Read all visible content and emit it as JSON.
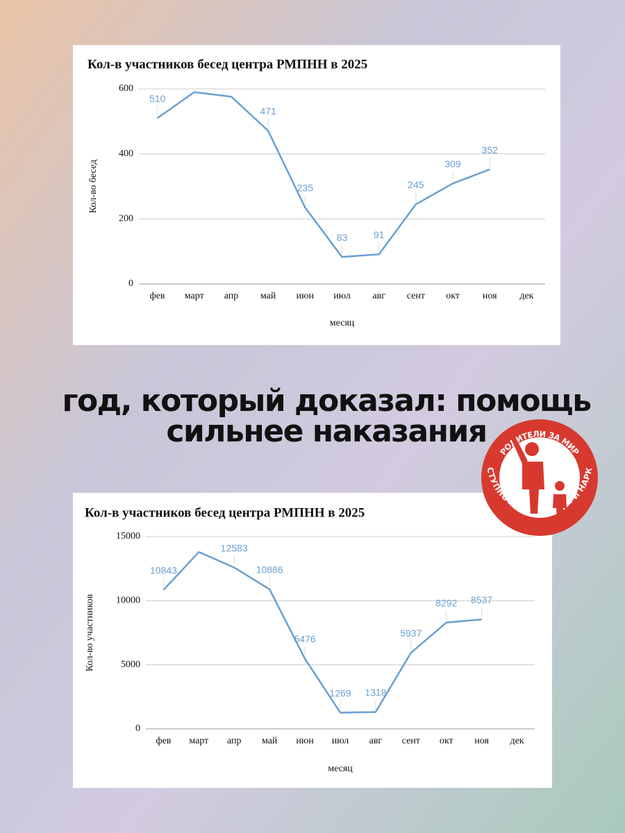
{
  "chart_data": [
    {
      "type": "line",
      "title": "Кол-в участников бесед центра РМПНН в 2025",
      "x_label": "месяц",
      "y_label": "Кол-во бесед",
      "categories": [
        "фев",
        "март",
        "апр",
        "май",
        "июн",
        "июл",
        "авг",
        "сент",
        "окт",
        "ноя",
        "дек"
      ],
      "values": [
        510,
        590,
        576,
        471,
        235,
        83,
        91,
        245,
        309,
        352,
        null
      ],
      "value_labels": [
        "510",
        null,
        null,
        "471",
        "235",
        "83",
        "91",
        "245",
        "309",
        "352",
        null
      ],
      "color": "#6a9fd0",
      "ylim": [
        0,
        600
      ],
      "yticks": [
        0,
        200,
        400,
        600
      ],
      "grid": true
    },
    {
      "type": "line",
      "title": "Кол-в участников бесед центра РМПНН в 2025",
      "x_label": "месяц",
      "y_label": "Кол-во участников",
      "categories": [
        "фев",
        "март",
        "апр",
        "май",
        "июн",
        "июл",
        "авг",
        "сент",
        "окт",
        "ноя",
        "дек"
      ],
      "values": [
        10843,
        13800,
        12583,
        10886,
        5476,
        1269,
        1318,
        5937,
        8292,
        8537,
        null
      ],
      "value_labels": [
        "10843",
        null,
        "12583",
        "10886",
        "5476",
        "1269",
        "1318",
        "5937",
        "8292",
        "8537",
        null
      ],
      "color": "#6a9fd0",
      "ylim": [
        0,
        15000
      ],
      "yticks": [
        0,
        5000,
        10000,
        15000
      ],
      "grid": true
    }
  ],
  "headline": [
    "год, который доказал: помощь",
    "сильнее наказания"
  ],
  "logo": {
    "top": "РОДИТЕЛИ ЗА МИР",
    "bottom": "БЕЗ ПРЕСТУПНОСТИ, НАСИЛИЯ И НАРКОТИКОВ"
  }
}
